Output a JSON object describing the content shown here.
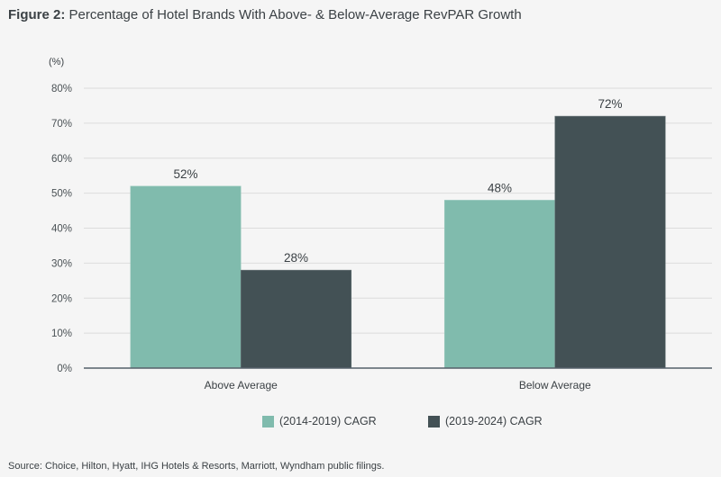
{
  "figure_label": "Figure 2:",
  "title": " Percentage of Hotel Brands With Above- & Below-Average RevPAR Growth",
  "source": "Source: Choice, Hilton, Hyatt, IHG Hotels & Resorts, Marriott, Wyndham public filings.",
  "chart_data": {
    "type": "bar",
    "title": "Percentage of Hotel Brands With Above- & Below-Average RevPAR Growth",
    "ylabel": "(%)",
    "xlabel": "",
    "ylim": [
      0,
      80
    ],
    "yticks": [
      0,
      10,
      20,
      30,
      40,
      50,
      60,
      70,
      80
    ],
    "ytick_labels": [
      "0%",
      "10%",
      "20%",
      "30%",
      "40%",
      "50%",
      "60%",
      "70%",
      "80%"
    ],
    "grid": true,
    "legend_position": "bottom",
    "categories": [
      "Above Average",
      "Below Average"
    ],
    "series": [
      {
        "name": "(2014-2019) CAGR",
        "color": "#80bbad",
        "values": [
          52,
          48
        ],
        "labels": [
          "52%",
          "48%"
        ]
      },
      {
        "name": "(2019-2024) CAGR",
        "color": "#435155",
        "values": [
          28,
          72
        ],
        "labels": [
          "28%",
          "72%"
        ]
      }
    ]
  }
}
